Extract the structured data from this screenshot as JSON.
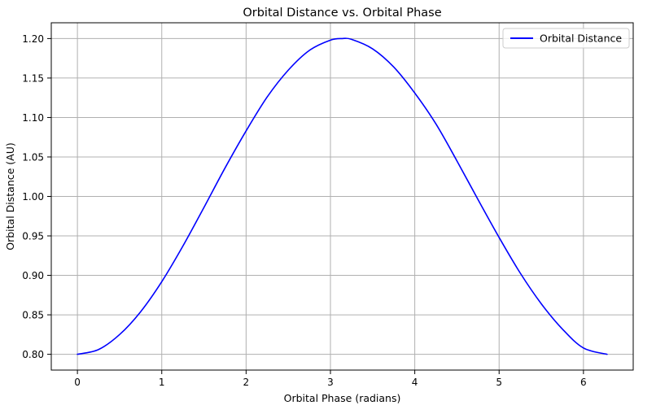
{
  "chart_data": {
    "type": "line",
    "title": "Orbital Distance vs. Orbital Phase",
    "xlabel": "Orbital Phase (radians)",
    "ylabel": "Orbital Distance (AU)",
    "xlim": [
      -0.31,
      6.59
    ],
    "ylim": [
      0.78,
      1.22
    ],
    "x_ticks": [
      0,
      1,
      2,
      3,
      4,
      5,
      6
    ],
    "x_tick_labels": [
      "0",
      "1",
      "2",
      "3",
      "4",
      "5",
      "6"
    ],
    "y_ticks": [
      0.8,
      0.85,
      0.9,
      0.95,
      1.0,
      1.05,
      1.1,
      1.15,
      1.2
    ],
    "y_tick_labels": [
      "0.80",
      "0.85",
      "0.90",
      "0.95",
      "1.00",
      "1.05",
      "1.10",
      "1.15",
      "1.20"
    ],
    "grid": true,
    "legend_position": "top-right",
    "series": [
      {
        "name": "Orbital Distance",
        "color": "#0000ff",
        "x": [
          0,
          0.25,
          0.5,
          0.75,
          1.0,
          1.25,
          1.5,
          1.75,
          2.0,
          2.25,
          2.5,
          2.75,
          3.0,
          3.14,
          3.25,
          3.5,
          3.75,
          4.0,
          4.25,
          4.5,
          4.75,
          5.0,
          5.25,
          5.5,
          5.75,
          6.0,
          6.28
        ],
        "y": [
          0.8,
          0.806,
          0.825,
          0.854,
          0.892,
          0.937,
          0.986,
          1.036,
          1.083,
          1.126,
          1.16,
          1.185,
          1.198,
          1.2,
          1.199,
          1.187,
          1.164,
          1.131,
          1.092,
          1.045,
          0.996,
          0.948,
          0.903,
          0.864,
          0.832,
          0.808,
          0.8
        ]
      }
    ]
  }
}
